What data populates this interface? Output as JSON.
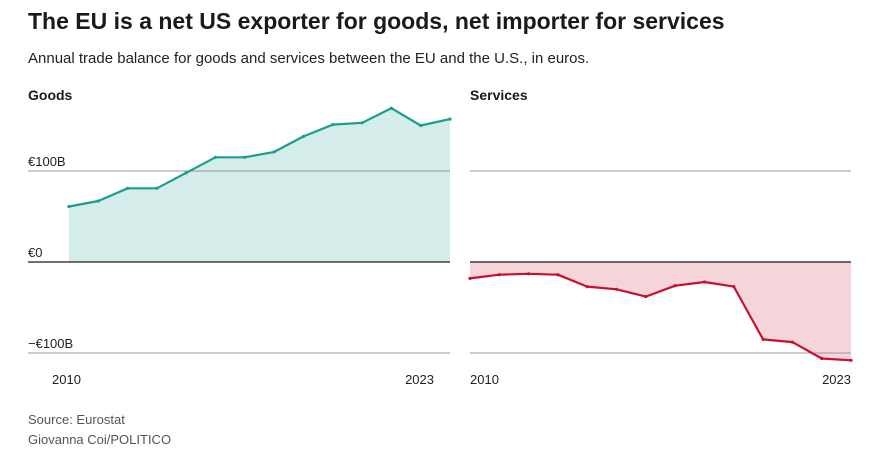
{
  "title": "The EU is a net US exporter for goods, net importer for services",
  "subtitle": "Annual trade balance for goods and services between the EU and the U.S., in euros.",
  "footer": {
    "source": "Source: Eurostat",
    "credit": "Giovanna Coi/POLITICO"
  },
  "colors": {
    "goods_line": "#1a9e8f",
    "goods_fill": "#d4ecea",
    "services_line": "#c8102e",
    "services_fill": "#f6d5da",
    "gridline": "#999999",
    "zero_line": "#1a1a1a"
  },
  "chart_data": [
    {
      "type": "area",
      "panel_title": "Goods",
      "x": [
        2010,
        2011,
        2012,
        2013,
        2014,
        2015,
        2016,
        2017,
        2018,
        2019,
        2020,
        2021,
        2022,
        2023
      ],
      "values": [
        61,
        67,
        81,
        81,
        98,
        115,
        115,
        121,
        138,
        151,
        153,
        169,
        150,
        157
      ],
      "ylim": [
        -110,
        160
      ],
      "y_ticks": [
        100,
        0,
        -100
      ],
      "y_tick_labels": [
        "€100B",
        "€0",
        "−€100B"
      ],
      "x_tick_labels": [
        "2010",
        "2023"
      ],
      "unit": "EUR billions"
    },
    {
      "type": "area",
      "panel_title": "Services",
      "x": [
        2010,
        2011,
        2012,
        2013,
        2014,
        2015,
        2016,
        2017,
        2018,
        2019,
        2020,
        2021,
        2022,
        2023
      ],
      "values": [
        -18,
        -14,
        -13,
        -14,
        -27,
        -30,
        -38,
        -26,
        -22,
        -27,
        -85,
        -88,
        -106,
        -108
      ],
      "ylim": [
        -110,
        160
      ],
      "y_ticks": [
        100,
        0,
        -100
      ],
      "x_tick_labels": [
        "2010",
        "2023"
      ],
      "unit": "EUR billions"
    }
  ]
}
